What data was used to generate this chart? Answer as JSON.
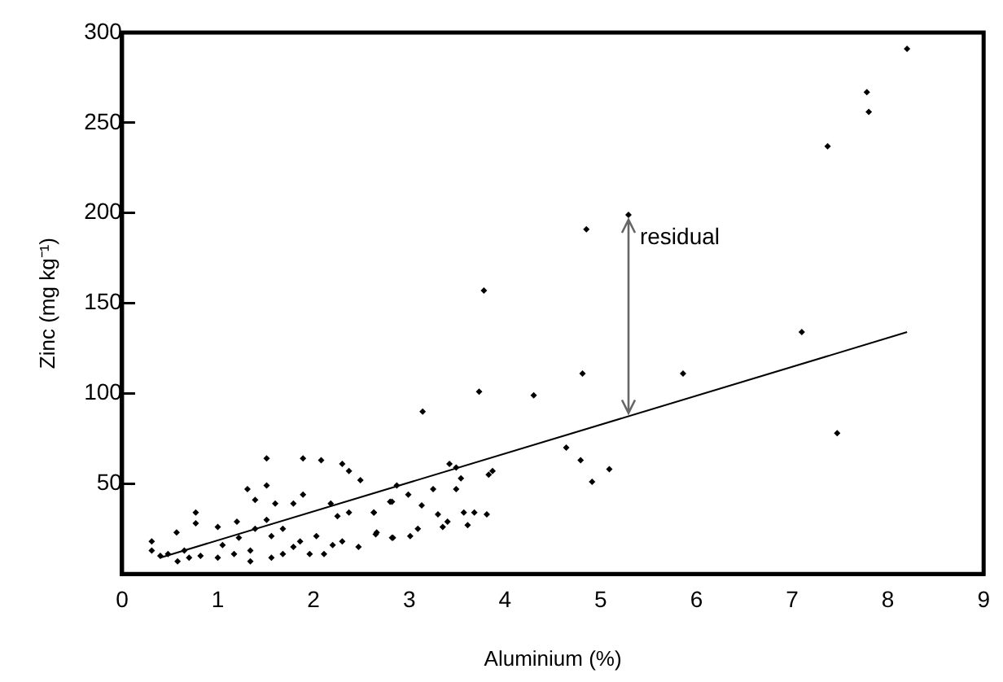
{
  "chart_data": {
    "type": "scatter",
    "xlabel": "Aluminium (%)",
    "ylabel": "Zinc (mg kg⁻¹)",
    "xlim": [
      0,
      9
    ],
    "xticks": [
      0,
      1,
      2,
      3,
      4,
      5,
      6,
      7,
      8,
      9
    ],
    "ylim": [
      0,
      300
    ],
    "yticks": [
      50,
      100,
      150,
      200,
      250,
      300
    ],
    "grid": false,
    "legend": false,
    "marker": "diamond",
    "annotations": [
      {
        "text": "residual",
        "x": 5.29,
        "y": 199
      }
    ],
    "series": [
      {
        "color": "#000000",
        "x": [
          8.2,
          7.78,
          7.8,
          7.37,
          5.29,
          4.85,
          3.78,
          7.1,
          7.47,
          5.86,
          4.81,
          4.3,
          3.73,
          3.14,
          4.64,
          4.79,
          4.91,
          5.09,
          3.42,
          3.49,
          2.87,
          3.25,
          3.49,
          3.54,
          3.83,
          3.87,
          2.99,
          2.82,
          3.13,
          2.63,
          3.3,
          3.4,
          3.57,
          3.68,
          3.81,
          3.61,
          3.35,
          2.66,
          2.83,
          3.01,
          3.09,
          1.51,
          1.89,
          2.08,
          2.3,
          2.37,
          2.49,
          1.51,
          1.31,
          1.89,
          1.39,
          1.6,
          1.79,
          0.77,
          2.18,
          2.25,
          2.37,
          2.63,
          2.8,
          0.77,
          1.2,
          1.0,
          0.57,
          1.51,
          2.65,
          2.82,
          2.47,
          2.3,
          2.2,
          0.31,
          0.31,
          0.48,
          0.65,
          0.82,
          1.0,
          1.17,
          1.34,
          1.39,
          1.56,
          1.68,
          1.86,
          2.03,
          1.22,
          1.05,
          0.58,
          1.56,
          1.34,
          1.68,
          1.79,
          1.96,
          2.11,
          0.7,
          0.4
        ],
        "values": [
          291,
          267,
          256,
          237,
          199,
          191,
          157,
          134,
          78,
          111,
          111,
          99,
          101,
          90,
          70,
          63,
          51,
          58,
          61,
          59,
          49,
          47,
          47,
          53,
          55,
          57,
          44,
          40,
          38,
          34,
          33,
          29,
          34,
          34,
          33,
          27,
          26,
          23,
          20,
          21,
          25,
          64,
          64,
          63,
          61,
          57,
          52,
          49,
          47,
          44,
          41,
          39,
          39,
          34,
          39,
          32,
          34,
          34,
          40,
          28,
          29,
          26,
          23,
          30,
          22,
          20,
          15,
          18,
          16,
          18,
          13,
          11,
          13,
          10,
          9,
          11,
          13,
          25,
          21,
          25,
          18,
          21,
          20,
          16,
          7,
          9,
          7,
          11,
          15,
          11,
          11,
          9,
          10
        ]
      },
      {
        "type": "line",
        "color": "#000000",
        "x": [
          0.4,
          8.2
        ],
        "values": [
          9,
          134
        ],
        "marker": "none"
      }
    ]
  }
}
